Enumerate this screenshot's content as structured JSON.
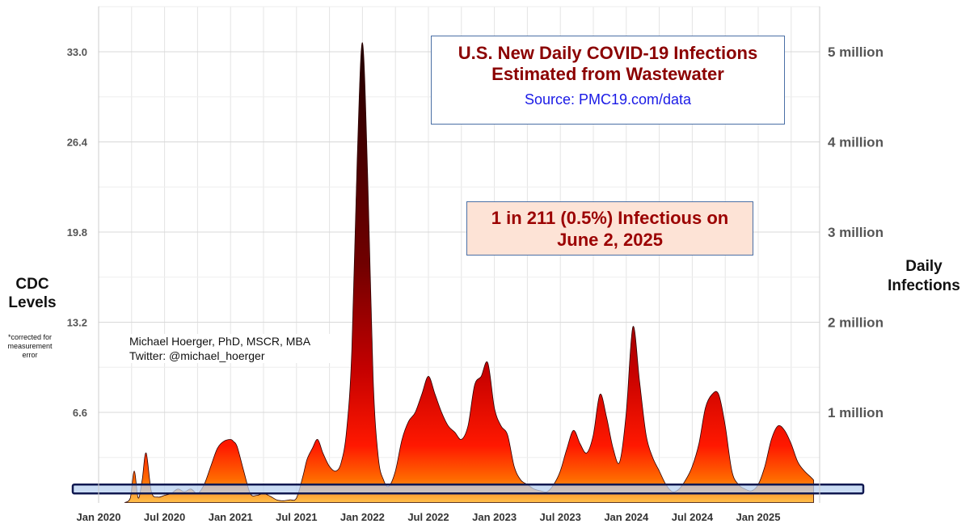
{
  "chart_data": {
    "type": "area",
    "title": "U.S. New Daily COVID-19 Infections",
    "subtitle": "Estimated from Wastewater",
    "source": "Source: PMC19.com/data",
    "annotation": "1 in 211 (0.5%) Infectious on",
    "annotation_line2": "June 2, 2025",
    "author_line1": "Michael Hoerger, PhD, MSCR, MBA",
    "author_line2": "Twitter: @michael_hoerger",
    "left_axis_title_line1": "CDC",
    "left_axis_title_line2": "Levels",
    "left_axis_note_line1": "*corrected for",
    "left_axis_note_line2": "measurement",
    "left_axis_note_line3": "error",
    "right_axis_title_line1": "Daily",
    "right_axis_title_line2": "Infections",
    "left_ticks": [
      "6.6",
      "13.2",
      "19.8",
      "26.4",
      "33.0"
    ],
    "left_tick_values": [
      6.6,
      13.2,
      19.8,
      26.4,
      33.0
    ],
    "right_ticks": [
      "1 million",
      "2 million",
      "3 million",
      "4 million",
      "5 million"
    ],
    "right_tick_values": [
      1,
      2,
      3,
      4,
      5
    ],
    "x_ticks": [
      "Jan 2020",
      "Jul 2020",
      "Jan 2021",
      "Jul 2021",
      "Jan 2022",
      "Jul 2022",
      "Jan 2023",
      "Jul 2023",
      "Jan 2024",
      "Jul 2024",
      "Jan 2025"
    ],
    "x_tick_values": [
      2020.0,
      2020.5,
      2021.0,
      2021.5,
      2022.0,
      2022.5,
      2023.0,
      2023.5,
      2024.0,
      2024.5,
      2025.0
    ],
    "x_range": [
      2020.0,
      2025.45
    ],
    "y_range_millions": [
      0,
      5.5
    ],
    "band_millions": [
      0.1,
      0.2
    ],
    "grid": true,
    "colors": {
      "low": "#ffc04d",
      "mid": "#ff2000",
      "high": "#1a0000",
      "band": "#b8d0f0",
      "band_edge": "#101850"
    },
    "series": [
      {
        "x": [
          2020.2,
          2020.24,
          2020.27,
          2020.3,
          2020.33,
          2020.36,
          2020.4,
          2020.45,
          2020.5,
          2020.55,
          2020.6,
          2020.65,
          2020.7,
          2020.75,
          2020.8,
          2020.85,
          2020.9,
          2020.95,
          2021.0,
          2021.02,
          2021.05,
          2021.1,
          2021.15,
          2021.2,
          2021.25,
          2021.3,
          2021.35,
          2021.4,
          2021.45,
          2021.5,
          2021.55,
          2021.58,
          2021.62,
          2021.66,
          2021.7,
          2021.75,
          2021.8,
          2021.84,
          2021.88,
          2021.92,
          2021.96,
          2022.0,
          2022.04,
          2022.08,
          2022.12,
          2022.16,
          2022.2,
          2022.25,
          2022.3,
          2022.35,
          2022.4,
          2022.45,
          2022.5,
          2022.55,
          2022.6,
          2022.65,
          2022.7,
          2022.75,
          2022.8,
          2022.85,
          2022.9,
          2022.95,
          2023.0,
          2023.05,
          2023.1,
          2023.15,
          2023.2,
          2023.25,
          2023.3,
          2023.35,
          2023.4,
          2023.45,
          2023.5,
          2023.55,
          2023.6,
          2023.65,
          2023.7,
          2023.75,
          2023.8,
          2023.85,
          2023.9,
          2023.95,
          2024.0,
          2024.05,
          2024.1,
          2024.15,
          2024.2,
          2024.25,
          2024.3,
          2024.35,
          2024.4,
          2024.45,
          2024.5,
          2024.55,
          2024.6,
          2024.65,
          2024.7,
          2024.75,
          2024.8,
          2024.85,
          2024.9,
          2024.95,
          2025.0,
          2025.05,
          2025.1,
          2025.15,
          2025.2,
          2025.25,
          2025.3,
          2025.35,
          2025.4,
          2025.42
        ],
        "values": [
          0.0,
          0.05,
          0.35,
          0.05,
          0.25,
          0.55,
          0.12,
          0.06,
          0.08,
          0.1,
          0.15,
          0.12,
          0.15,
          0.1,
          0.2,
          0.4,
          0.6,
          0.68,
          0.7,
          0.68,
          0.62,
          0.35,
          0.1,
          0.08,
          0.1,
          0.07,
          0.03,
          0.02,
          0.03,
          0.05,
          0.3,
          0.48,
          0.6,
          0.7,
          0.55,
          0.4,
          0.35,
          0.45,
          0.8,
          1.7,
          3.8,
          5.1,
          3.6,
          1.4,
          0.5,
          0.25,
          0.18,
          0.35,
          0.7,
          0.9,
          1.0,
          1.2,
          1.4,
          1.2,
          1.0,
          0.85,
          0.78,
          0.7,
          0.85,
          1.3,
          1.4,
          1.55,
          1.05,
          0.85,
          0.75,
          0.4,
          0.25,
          0.2,
          0.15,
          0.13,
          0.12,
          0.2,
          0.35,
          0.6,
          0.8,
          0.65,
          0.55,
          0.75,
          1.2,
          0.95,
          0.6,
          0.45,
          1.0,
          1.95,
          1.35,
          0.75,
          0.5,
          0.35,
          0.2,
          0.12,
          0.15,
          0.25,
          0.4,
          0.65,
          1.05,
          1.2,
          1.2,
          0.85,
          0.35,
          0.2,
          0.15,
          0.13,
          0.2,
          0.4,
          0.7,
          0.85,
          0.8,
          0.65,
          0.45,
          0.35,
          0.28,
          0.25
        ]
      }
    ]
  }
}
